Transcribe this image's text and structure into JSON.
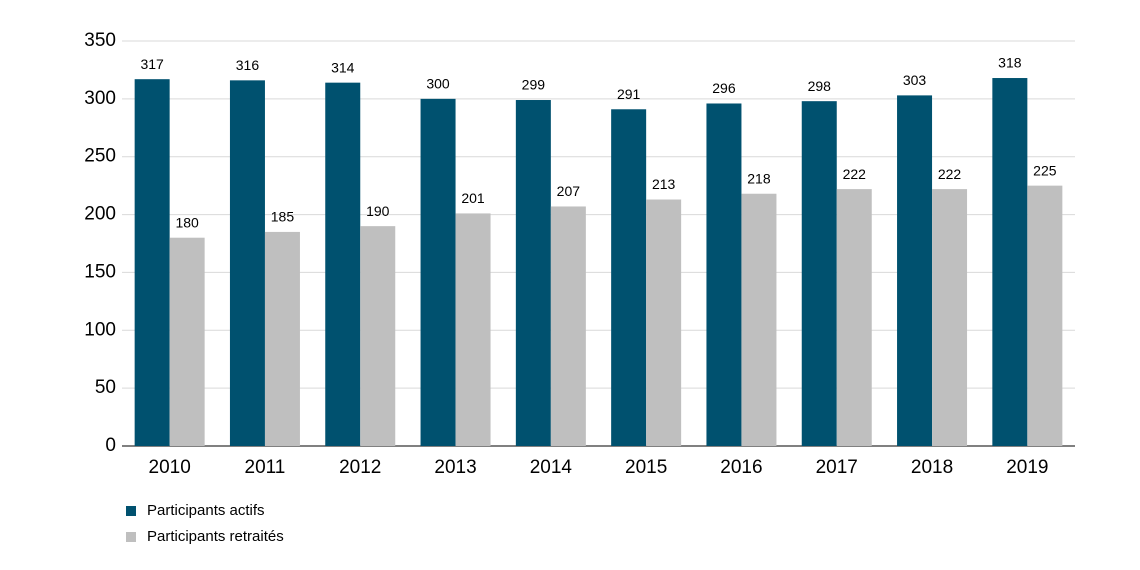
{
  "chart_data": {
    "type": "bar",
    "categories": [
      "2010",
      "2011",
      "2012",
      "2013",
      "2014",
      "2015",
      "2016",
      "2017",
      "2018",
      "2019"
    ],
    "series": [
      {
        "name": "Participants actifs",
        "color": "#00516f",
        "values": [
          317,
          316,
          314,
          300,
          299,
          291,
          296,
          298,
          303,
          318
        ]
      },
      {
        "name": "Participants retraités",
        "color": "#bfbfbf",
        "values": [
          180,
          185,
          190,
          201,
          207,
          213,
          218,
          222,
          222,
          225
        ]
      }
    ],
    "ylim": [
      0,
      350
    ],
    "yticks": [
      0,
      50,
      100,
      150,
      200,
      250,
      300,
      350
    ],
    "grid": true,
    "legend": "bottom-left"
  }
}
